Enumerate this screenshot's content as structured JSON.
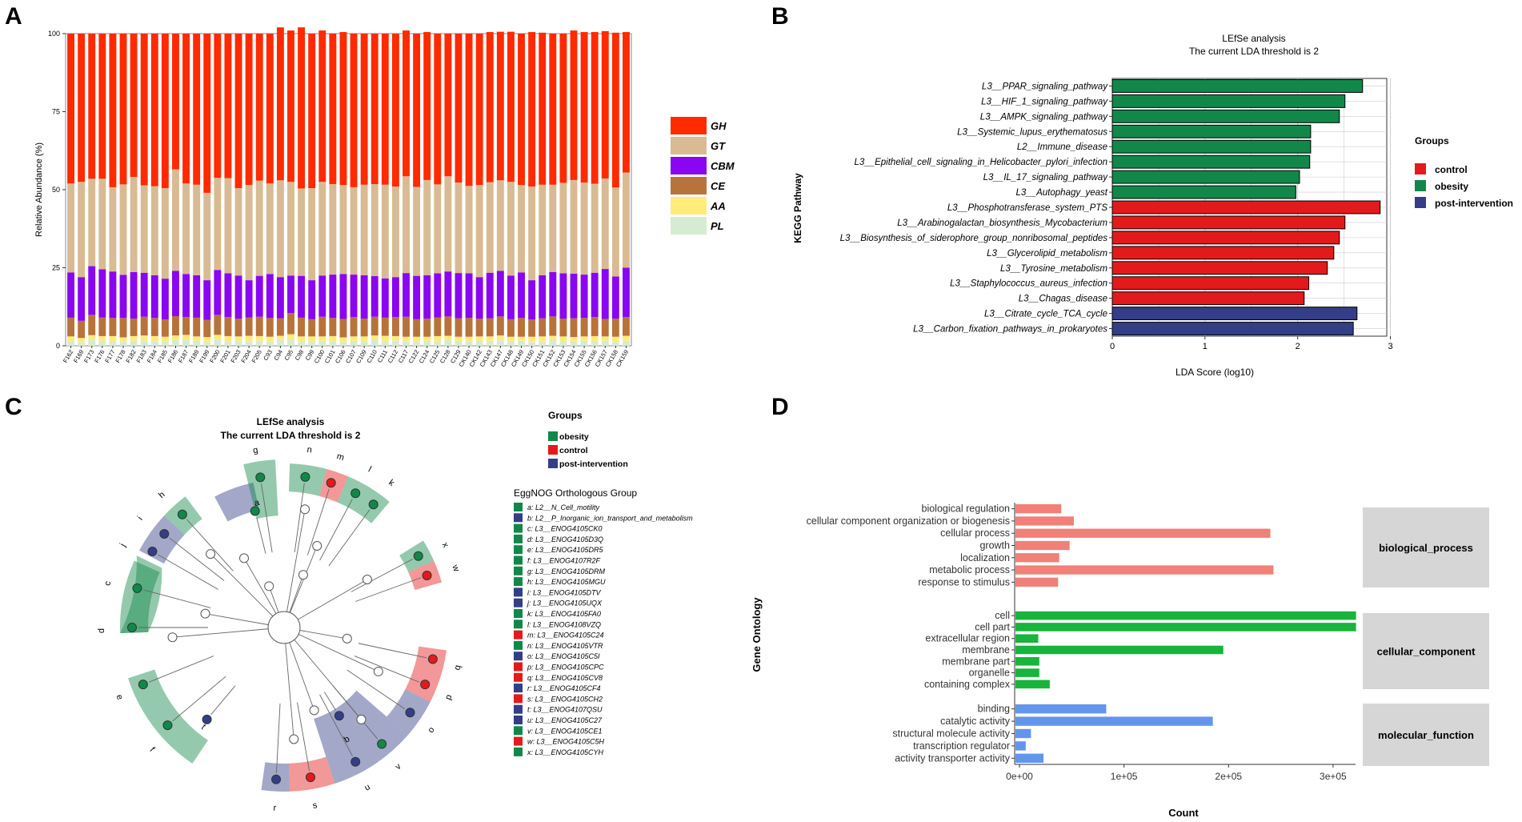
{
  "panels": {
    "a": "A",
    "b": "B",
    "c": "C",
    "d": "D"
  },
  "colors": {
    "GH": "#ff2a00",
    "GT": "#d8bb93",
    "CBM": "#8a06f0",
    "CE": "#b8733a",
    "AA": "#ffec7a",
    "PL": "#d6ecd2",
    "control": "#e31a1c",
    "obesity": "#11884a",
    "post": "#333e87",
    "bio": "#f08078",
    "cell": "#18b43c",
    "mol": "#6495ed",
    "strip": "#d6d6d6",
    "grid": "#cccccc"
  },
  "chart_data": [
    {
      "id": "A",
      "type": "bar",
      "stacked": true,
      "ylabel": "Relative Abundance (%)",
      "xlabel": "",
      "ylim": [
        0,
        100
      ],
      "yticks": [
        "0",
        "25",
        "50",
        "75",
        "100"
      ],
      "categories": [
        "F162",
        "F169",
        "F173",
        "F176",
        "F177",
        "F178",
        "F182",
        "F183",
        "F184",
        "F185",
        "F186",
        "F187",
        "F189",
        "F199",
        "F200",
        "F201",
        "F203",
        "F204",
        "F205",
        "C93",
        "C94",
        "C95",
        "C98",
        "C99",
        "C100",
        "C101",
        "C106",
        "C107",
        "C109",
        "C110",
        "C111",
        "C112",
        "C117",
        "C122",
        "C124",
        "C125",
        "C128",
        "C129",
        "CK140",
        "CK142",
        "CK143",
        "CK147",
        "CK148",
        "CK149",
        "CK150",
        "CK151",
        "CK152",
        "CK153",
        "CK154",
        "CK155",
        "CK156",
        "CK157",
        "CK158",
        "CK159"
      ],
      "legend": [
        "GH",
        "GT",
        "CBM",
        "CE",
        "AA",
        "PL"
      ],
      "series": [
        {
          "name": "PL",
          "values": [
            1.5,
            1.2,
            1.8,
            1.6,
            1.4,
            1.3,
            1.6,
            1.7,
            1.5,
            1.4,
            1.9,
            1.8,
            1.6,
            1.2,
            2.0,
            1.5,
            1.7,
            1.4,
            1.6,
            1.3,
            1.8,
            2.0,
            1.5,
            1.4,
            1.6,
            1.5,
            1.2,
            1.6,
            1.4,
            1.8,
            1.5,
            1.7,
            1.3,
            1.4,
            1.6,
            1.5,
            1.8,
            1.4,
            1.3,
            1.6,
            1.5,
            1.7,
            1.4,
            1.6,
            1.2,
            1.5,
            1.8,
            1.4,
            1.3,
            1.6,
            1.5,
            1.7,
            1.4,
            1.6
          ]
        },
        {
          "name": "AA",
          "values": [
            1.5,
            1.3,
            1.6,
            1.5,
            1.7,
            1.4,
            1.5,
            1.6,
            1.6,
            1.5,
            1.4,
            1.7,
            1.4,
            1.6,
            1.5,
            1.6,
            1.3,
            1.8,
            1.5,
            1.6,
            1.4,
            1.7,
            1.5,
            1.6,
            1.4,
            1.6,
            1.5,
            1.4,
            1.6,
            1.5,
            1.7,
            1.4,
            1.6,
            1.5,
            1.3,
            1.6,
            1.4,
            1.5,
            1.6,
            1.4,
            1.5,
            1.6,
            1.5,
            1.3,
            1.7,
            1.5,
            1.4,
            1.6,
            1.5,
            1.4,
            1.6,
            1.3,
            1.5,
            1.6
          ]
        },
        {
          "name": "CE",
          "values": [
            6,
            5.5,
            6.5,
            6,
            5.8,
            6.2,
            5.6,
            6,
            5.8,
            5.5,
            6.2,
            5.7,
            6,
            5.5,
            6.4,
            6.1,
            5.7,
            5.9,
            6.2,
            6,
            5.6,
            6.8,
            6,
            5.5,
            6.3,
            5.8,
            5.9,
            6.2,
            5.7,
            6,
            5.8,
            6.1,
            6.4,
            5.6,
            5.8,
            6,
            6.2,
            5.9,
            6,
            5.7,
            5.8,
            6.1,
            5.6,
            6,
            5.5,
            5.8,
            6.2,
            5.7,
            6,
            5.9,
            6.1,
            5.6,
            5.8,
            6
          ]
        },
        {
          "name": "CBM",
          "values": [
            14.5,
            14.0,
            15.6,
            15.4,
            14.9,
            13.8,
            14.9,
            14.1,
            13.7,
            13.1,
            14.5,
            13.8,
            13.6,
            12.7,
            14.4,
            14.0,
            13.8,
            11.9,
            13.1,
            14.1,
            13.2,
            12.0,
            13.4,
            12.5,
            13.2,
            13.9,
            14.4,
            13.6,
            13.9,
            13.0,
            12.6,
            12.8,
            14.0,
            13.9,
            13.9,
            14.1,
            14.4,
            14.5,
            14.3,
            13.3,
            14.6,
            14.6,
            14.0,
            14.6,
            12.6,
            13.8,
            14.2,
            14.5,
            14.3,
            13.9,
            14.2,
            16.0,
            13.5,
            15.8
          ]
        },
        {
          "name": "GT",
          "values": [
            28.5,
            30.5,
            28,
            29,
            27,
            29,
            30.5,
            28,
            28.5,
            29,
            32.5,
            29,
            29,
            28,
            29.5,
            30.5,
            28,
            30.5,
            30.5,
            29,
            31,
            30,
            28,
            29.5,
            30,
            29,
            28.5,
            28,
            29,
            29.5,
            30,
            29,
            31,
            28.5,
            30.5,
            28.5,
            30.5,
            29,
            28,
            29.5,
            29,
            29,
            30,
            28,
            30,
            29,
            28,
            29,
            30,
            29.5,
            28.5,
            29,
            28.5,
            30.5
          ]
        },
        {
          "name": "GH",
          "values": [
            48,
            47.5,
            46.5,
            46.5,
            49.2,
            48.3,
            45.9,
            48.6,
            48.9,
            49.5,
            43.5,
            48,
            48.4,
            51,
            46.2,
            46.3,
            49.5,
            48.5,
            47.1,
            48,
            49,
            48.5,
            51.6,
            49.5,
            48.5,
            48.2,
            49,
            49.2,
            48.4,
            48.2,
            48.4,
            49,
            46.7,
            49.1,
            47.4,
            48.3,
            45.7,
            47.7,
            48.8,
            48.5,
            48.1,
            47.6,
            48.1,
            48.5,
            49.5,
            48.7,
            48.4,
            47.8,
            47.9,
            48.2,
            48.6,
            47.2,
            49.6,
            45
          ]
        }
      ]
    },
    {
      "id": "B",
      "type": "bar",
      "orientation": "horizontal",
      "title": "LEfSe analysis",
      "subtitle": "The current LDA threshold is 2",
      "xlabel": "LDA Score (log10)",
      "ylabel": "KEGG Pathway",
      "xlim": [
        0,
        3
      ],
      "xticks": [
        "0",
        "1",
        "2",
        "3"
      ],
      "legend_title": "Groups",
      "legend": [
        "control",
        "obesity",
        "post-intervention"
      ],
      "categories": [
        "L3__PPAR_signaling_pathway",
        "L3__HIF_1_signaling_pathway",
        "L3__AMPK_signaling_pathway",
        "L3__Systemic_lupus_erythematosus",
        "L2__Immune_disease",
        "L3__Epithelial_cell_signaling_in_Helicobacter_pylori_infection",
        "L3__IL_17_signaling_pathway",
        "L3__Autophagy_yeast",
        "L3__Phosphotransferase_system_PTS",
        "L3__Arabinogalactan_biosynthesis_Mycobacterium",
        "L3__Biosynthesis_of_siderophore_group_nonribosomal_peptides",
        "L3__Glycerolipid_metabolism",
        "L3__Tyrosine_metabolism",
        "L3__Staphylococcus_aureus_infection",
        "L3__Chagas_disease",
        "L3__Citrate_cycle_TCA_cycle",
        "L3__Carbon_fixation_pathways_in_prokaryotes"
      ],
      "values": [
        2.7,
        2.51,
        2.45,
        2.14,
        2.14,
        2.13,
        2.02,
        1.98,
        2.89,
        2.51,
        2.45,
        2.39,
        2.32,
        2.12,
        2.07,
        2.64,
        2.6
      ],
      "groups": [
        "obesity",
        "obesity",
        "obesity",
        "obesity",
        "obesity",
        "obesity",
        "obesity",
        "obesity",
        "control",
        "control",
        "control",
        "control",
        "control",
        "control",
        "control",
        "post",
        "post"
      ]
    },
    {
      "id": "C",
      "type": "cladogram",
      "title": "LEfSe analysis",
      "subtitle": "The current LDA threshold is 2",
      "legend_title": "Groups",
      "legend": [
        "obesity",
        "control",
        "post-intervention"
      ],
      "group_legend_title": "EggNOG Orthologous Group",
      "letters": [
        "a",
        "b",
        "c",
        "d",
        "e",
        "f",
        "g",
        "h",
        "i",
        "j",
        "k",
        "l",
        "m",
        "n",
        "o",
        "p",
        "q",
        "r",
        "s",
        "t",
        "u",
        "v",
        "w",
        "x"
      ],
      "entries": [
        "a: L2__N_Cell_motility",
        "b: L2__P_Inorganic_ion_transport_and_metabolism",
        "c: L3__ENOG4105CK0",
        "d: L3__ENOG4105D3Q",
        "e: L3__ENOG4105DR5",
        "f: L3__ENOG4107R2F",
        "g: L3__ENOG4105DRM",
        "h: L3__ENOG4105MGU",
        "i: L3__ENOG4105DTV",
        "j: L3__ENOG4105UQX",
        "k: L3__ENOG4105FA0",
        "l: L3__ENOG4108VZQ",
        "m: L3__ENOG4105C24",
        "n: L3__ENOG4105VTR",
        "o: L3__ENOG4105C5I",
        "p: L3__ENOG4105CPC",
        "q: L3__ENOG4105CV8",
        "r: L3__ENOG4105CF4",
        "s: L3__ENOG4105CH2",
        "t: L3__ENOG4107QSU",
        "u: L3__ENOG4105C27",
        "v: L3__ENOG4105CE1",
        "w: L3__ENOG4105C5H",
        "x: L3__ENOG4105CYH"
      ],
      "entry_groups": [
        "obesity",
        "post",
        "obesity",
        "obesity",
        "obesity",
        "obesity",
        "obesity",
        "obesity",
        "post",
        "post",
        "obesity",
        "obesity",
        "control",
        "obesity",
        "post",
        "control",
        "control",
        "post",
        "control",
        "post",
        "post",
        "obesity",
        "control",
        "obesity"
      ]
    },
    {
      "id": "D",
      "type": "bar",
      "orientation": "horizontal",
      "xlabel": "Count",
      "ylabel": "Gene Ontology",
      "xlim": [
        0,
        325000
      ],
      "xticks": [
        "0e+00",
        "1e+05",
        "2e+05",
        "3e+05"
      ],
      "facets": [
        {
          "name": "biological_process",
          "color_key": "bio",
          "categories": [
            "biological regulation",
            "cellular component organization or biogenesis",
            "cellular process",
            "growth",
            "localization",
            "metabolic process",
            "response to stimulus"
          ],
          "values": [
            40000,
            52000,
            240000,
            48000,
            38000,
            243000,
            37000
          ]
        },
        {
          "name": "cellular_component",
          "color_key": "cell",
          "categories": [
            "cell",
            "cell part",
            "extracellular region",
            "membrane",
            "membrane part",
            "organelle",
            "containing complex"
          ],
          "values": [
            322000,
            322000,
            18000,
            195000,
            19000,
            19000,
            29000
          ]
        },
        {
          "name": "molecular_function",
          "color_key": "mol",
          "categories": [
            "binding",
            "catalytic activity",
            "structural molecule activity",
            "transcription regulator",
            "activity transporter activity"
          ],
          "values": [
            83000,
            185000,
            11000,
            6000,
            23000
          ]
        }
      ]
    }
  ]
}
